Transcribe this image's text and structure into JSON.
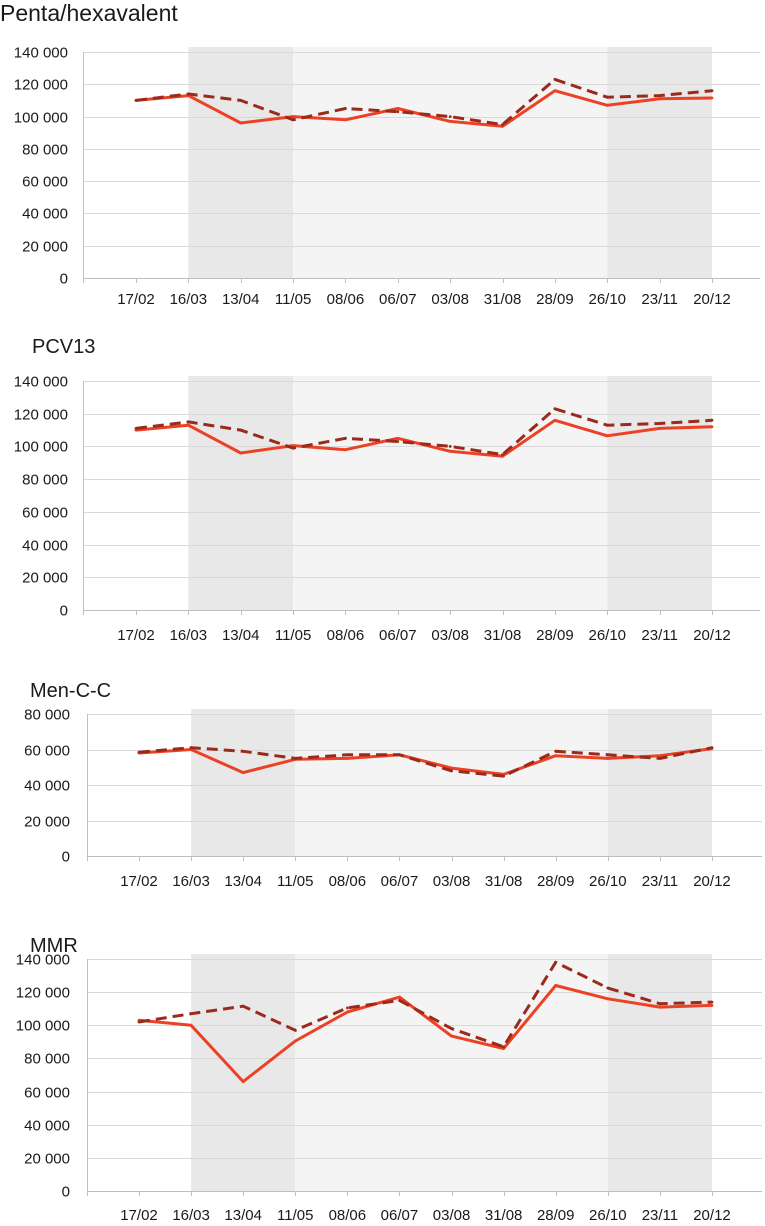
{
  "chart_data": [
    {
      "type": "line",
      "title": "Penta/hexavalent",
      "categories": [
        "17/02",
        "16/03",
        "13/04",
        "11/05",
        "08/06",
        "06/07",
        "03/08",
        "31/08",
        "28/09",
        "26/10",
        "23/11",
        "20/12"
      ],
      "ylim": [
        0,
        140000
      ],
      "yticks": [
        0,
        20000,
        40000,
        60000,
        80000,
        100000,
        120000,
        140000
      ],
      "ytick_labels": [
        "0",
        "20 000",
        "40 000",
        "60 000",
        "80 000",
        "100 000",
        "120 000",
        "140 000"
      ],
      "grid": true,
      "legend": "none",
      "bands": [
        {
          "start": "16/03",
          "end": "11/05",
          "color": "#e8e8e8"
        },
        {
          "start": "11/05",
          "end": "26/10",
          "color": "#f4f4f4"
        },
        {
          "start": "26/10",
          "end": "20/12",
          "color": "#e8e8e8"
        }
      ],
      "series": [
        {
          "style": "solid",
          "color": "#ec4125",
          "values": [
            110000,
            113000,
            96000,
            100000,
            98000,
            105000,
            97000,
            94000,
            116000,
            107000,
            111000,
            111500
          ]
        },
        {
          "style": "dashed",
          "color": "#9a2a1c",
          "values": [
            110000,
            114000,
            110000,
            98000,
            105000,
            103000,
            100000,
            95000,
            123000,
            112000,
            113000,
            116000
          ]
        }
      ]
    },
    {
      "type": "line",
      "title": "PCV13",
      "categories": [
        "17/02",
        "16/03",
        "13/04",
        "11/05",
        "08/06",
        "06/07",
        "03/08",
        "31/08",
        "28/09",
        "26/10",
        "23/11",
        "20/12"
      ],
      "ylim": [
        0,
        140000
      ],
      "yticks": [
        0,
        20000,
        40000,
        60000,
        80000,
        100000,
        120000,
        140000
      ],
      "ytick_labels": [
        "0",
        "20 000",
        "40 000",
        "60 000",
        "80 000",
        "100 000",
        "120 000",
        "140 000"
      ],
      "grid": true,
      "legend": "none",
      "bands": [
        {
          "start": "16/03",
          "end": "11/05",
          "color": "#e8e8e8"
        },
        {
          "start": "11/05",
          "end": "26/10",
          "color": "#f4f4f4"
        },
        {
          "start": "26/10",
          "end": "20/12",
          "color": "#e8e8e8"
        }
      ],
      "series": [
        {
          "style": "solid",
          "color": "#ec4125",
          "values": [
            110000,
            113000,
            96000,
            100500,
            98000,
            105000,
            97000,
            94000,
            116000,
            106500,
            111000,
            112000
          ]
        },
        {
          "style": "dashed",
          "color": "#9a2a1c",
          "values": [
            111000,
            115000,
            110000,
            99000,
            105000,
            103000,
            100000,
            95000,
            123000,
            113000,
            114000,
            116000
          ]
        }
      ]
    },
    {
      "type": "line",
      "title": "Men-C-C",
      "categories": [
        "17/02",
        "16/03",
        "13/04",
        "11/05",
        "08/06",
        "06/07",
        "03/08",
        "31/08",
        "28/09",
        "26/10",
        "23/11",
        "20/12"
      ],
      "ylim": [
        0,
        80000
      ],
      "yticks": [
        0,
        20000,
        40000,
        60000,
        80000
      ],
      "ytick_labels": [
        "0",
        "20 000",
        "40 000",
        "60 000",
        "80 000"
      ],
      "grid": true,
      "legend": "none",
      "bands": [
        {
          "start": "16/03",
          "end": "11/05",
          "color": "#e8e8e8"
        },
        {
          "start": "11/05",
          "end": "26/10",
          "color": "#f4f4f4"
        },
        {
          "start": "26/10",
          "end": "20/12",
          "color": "#e8e8e8"
        }
      ],
      "series": [
        {
          "style": "solid",
          "color": "#ec4125",
          "values": [
            58000,
            60000,
            47000,
            54500,
            55000,
            57000,
            49500,
            46000,
            56500,
            55000,
            56500,
            60500
          ]
        },
        {
          "style": "dashed",
          "color": "#9a2a1c",
          "values": [
            58500,
            61000,
            59000,
            55000,
            57000,
            57000,
            48000,
            45000,
            59000,
            57000,
            55000,
            61000
          ]
        }
      ]
    },
    {
      "type": "line",
      "title": "MMR",
      "categories": [
        "17/02",
        "16/03",
        "13/04",
        "11/05",
        "08/06",
        "06/07",
        "03/08",
        "31/08",
        "28/09",
        "26/10",
        "23/11",
        "20/12"
      ],
      "ylim": [
        0,
        140000
      ],
      "yticks": [
        0,
        20000,
        40000,
        60000,
        80000,
        100000,
        120000,
        140000
      ],
      "ytick_labels": [
        "0",
        "20 000",
        "40 000",
        "60 000",
        "80 000",
        "100 000",
        "120 000",
        "140 000"
      ],
      "grid": true,
      "legend": "none",
      "bands": [
        {
          "start": "16/03",
          "end": "11/05",
          "color": "#e8e8e8"
        },
        {
          "start": "11/05",
          "end": "26/10",
          "color": "#f4f4f4"
        },
        {
          "start": "26/10",
          "end": "20/12",
          "color": "#e8e8e8"
        }
      ],
      "series": [
        {
          "style": "solid",
          "color": "#ec4125",
          "values": [
            103000,
            100000,
            66000,
            90500,
            108000,
            117000,
            93500,
            86000,
            124000,
            116000,
            111000,
            112000
          ]
        },
        {
          "style": "dashed",
          "color": "#9a2a1c",
          "values": [
            102000,
            107000,
            111500,
            97000,
            110500,
            115000,
            98000,
            87000,
            138000,
            122500,
            113000,
            114000
          ]
        }
      ]
    }
  ]
}
